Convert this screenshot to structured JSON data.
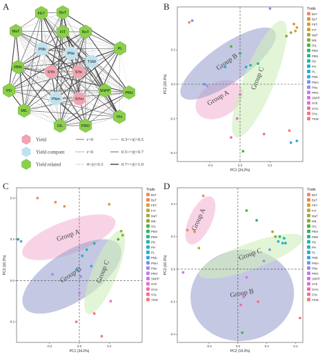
{
  "panel_labels": [
    "A",
    "B",
    "C",
    "D"
  ],
  "network": {
    "nodes": [
      {
        "id": "BoT",
        "cls": "related"
      },
      {
        "id": "FET",
        "cls": "related"
      },
      {
        "id": "MaT",
        "cls": "related"
      },
      {
        "id": "FIT",
        "cls": "related"
      },
      {
        "id": "BoT2",
        "label": "BoT",
        "cls": "related"
      },
      {
        "id": "PL",
        "cls": "related"
      },
      {
        "id": "PNb",
        "cls": "component"
      },
      {
        "id": "PNe",
        "cls": "component"
      },
      {
        "id": "TSW",
        "cls": "component"
      },
      {
        "id": "PBN",
        "cls": "related"
      },
      {
        "id": "SYb",
        "cls": "yield"
      },
      {
        "id": "SYe",
        "cls": "yield"
      },
      {
        "id": "PD",
        "cls": "related"
      },
      {
        "id": "SNPP",
        "cls": "related"
      },
      {
        "id": "PBH",
        "cls": "related"
      },
      {
        "id": "PNm",
        "cls": "component"
      },
      {
        "id": "SYm",
        "cls": "yield"
      },
      {
        "id": "MIL",
        "cls": "related"
      },
      {
        "id": "PH",
        "cls": "related"
      },
      {
        "id": "OIL",
        "cls": "related"
      },
      {
        "id": "PRO",
        "cls": "related"
      }
    ],
    "legend_classes": [
      {
        "key": "yield",
        "label": "Yield",
        "color": "#f2a3b0"
      },
      {
        "key": "component",
        "label": "Yield compont",
        "color": "#bfe2ef"
      },
      {
        "key": "related",
        "label": "Yield related",
        "color": "#8ccf4d"
      }
    ],
    "legend_r": [
      {
        "label": "r>0",
        "style": "solid"
      },
      {
        "label": "r<0",
        "style": "dashed"
      },
      {
        "label": "0<|r|<0.3",
        "style": "dotted"
      },
      {
        "label": "0.3<=|r|<0.5",
        "style": "thin"
      },
      {
        "label": "0.5<=|r|<0.7",
        "style": "mid"
      },
      {
        "label": "0.7<=|r|<1.0",
        "style": "thick"
      }
    ]
  },
  "traits_title": "Traits",
  "traits": [
    {
      "name": "BoT",
      "color": "#f28572"
    },
    {
      "name": "BoT",
      "color": "#ec8b3e"
    },
    {
      "name": "FET",
      "color": "#d99a3a"
    },
    {
      "name": "FIT",
      "color": "#c6a336"
    },
    {
      "name": "MaT",
      "color": "#a8a834"
    },
    {
      "name": "MIL",
      "color": "#84ad33"
    },
    {
      "name": "OIL",
      "color": "#4fb33b"
    },
    {
      "name": "PBH",
      "color": "#2db55d"
    },
    {
      "name": "PBN",
      "color": "#27b685"
    },
    {
      "name": "PD",
      "color": "#22b7a3"
    },
    {
      "name": "PH",
      "color": "#1fb5c0"
    },
    {
      "name": "PL",
      "color": "#22afd8"
    },
    {
      "name": "PNb",
      "color": "#37a4ea"
    },
    {
      "name": "PNm",
      "color": "#6e96f2"
    },
    {
      "name": "PNe",
      "color": "#9c88f4"
    },
    {
      "name": "PRO",
      "color": "#bd7bf0"
    },
    {
      "name": "SNPP",
      "color": "#d970e2"
    },
    {
      "name": "SYb",
      "color": "#ea6bcb"
    },
    {
      "name": "SYm",
      "color": "#f36aa9"
    },
    {
      "name": "SYe",
      "color": "#f5708a"
    },
    {
      "name": "TSW",
      "color": "#f47a78"
    }
  ],
  "chart_data": [
    {
      "type": "scatter",
      "panel": "B",
      "xlabel": "PC1 (24.2%)",
      "ylabel": "PC2 (19.3%)",
      "xlim": [
        -0.42,
        0.42
      ],
      "ylim": [
        -0.45,
        0.45
      ],
      "xticks": [
        -0.2,
        0.0,
        0.2
      ],
      "yticks": [
        -0.4,
        -0.2,
        0.0,
        0.2
      ],
      "groups": [
        {
          "label": "Group A",
          "cx": -0.14,
          "cy": -0.09,
          "rx": 0.17,
          "ry": 0.1,
          "rot": -30,
          "color": "#f4b6d6"
        },
        {
          "label": "Group B",
          "cx": -0.08,
          "cy": 0.12,
          "rx": 0.38,
          "ry": 0.11,
          "rot": -35,
          "color": "#9fa4cf"
        },
        {
          "label": "Group C",
          "cx": 0.13,
          "cy": 0.03,
          "rx": 0.42,
          "ry": 0.09,
          "rot": -68,
          "color": "#cfeebb"
        }
      ],
      "points": [
        {
          "x": -0.34,
          "y": 0.36,
          "t": 0
        },
        {
          "x": -0.32,
          "y": 0.37,
          "t": 13
        },
        {
          "x": 0.2,
          "y": 0.44,
          "t": 14
        },
        {
          "x": 0.36,
          "y": 0.35,
          "t": 1
        },
        {
          "x": 0.38,
          "y": 0.33,
          "t": 2
        },
        {
          "x": 0.37,
          "y": 0.31,
          "t": 3
        },
        {
          "x": 0.34,
          "y": 0.3,
          "t": 4
        },
        {
          "x": 0.31,
          "y": 0.28,
          "t": 5
        },
        {
          "x": -0.06,
          "y": 0.22,
          "t": 6
        },
        {
          "x": 0.0,
          "y": 0.18,
          "t": 7
        },
        {
          "x": 0.12,
          "y": 0.12,
          "t": 8
        },
        {
          "x": 0.07,
          "y": 0.11,
          "t": 9
        },
        {
          "x": 0.04,
          "y": 0.1,
          "t": 10
        },
        {
          "x": -0.1,
          "y": 0.1,
          "t": 11
        },
        {
          "x": -0.24,
          "y": 0.0,
          "t": 12
        },
        {
          "x": -0.22,
          "y": -0.01,
          "t": 15
        },
        {
          "x": 0.0,
          "y": -0.06,
          "t": 16
        },
        {
          "x": -0.02,
          "y": -0.2,
          "t": 17
        },
        {
          "x": -0.06,
          "y": -0.31,
          "t": 18
        },
        {
          "x": 0.16,
          "y": -0.29,
          "t": 19
        },
        {
          "x": 0.33,
          "y": -0.27,
          "t": 20
        },
        {
          "x": 0.38,
          "y": -0.33,
          "t": 11
        },
        {
          "x": 0.34,
          "y": -0.34,
          "t": 12
        },
        {
          "x": 0.02,
          "y": -0.39,
          "t": 6
        }
      ]
    },
    {
      "type": "scatter",
      "panel": "C",
      "xlabel": "PC1 (24.2%)",
      "ylabel": "PC3 (16.3%)",
      "xlim": [
        -0.42,
        0.42
      ],
      "ylim": [
        -0.3,
        0.45
      ],
      "xticks": [
        -0.2,
        0.0,
        0.2
      ],
      "yticks": [
        -0.2,
        0.0,
        0.2,
        0.4
      ],
      "groups": [
        {
          "label": "Group A",
          "cx": -0.07,
          "cy": 0.21,
          "rx": 0.33,
          "ry": 0.08,
          "rot": -20,
          "color": "#f4b6d6"
        },
        {
          "label": "Group B",
          "cx": -0.05,
          "cy": 0.02,
          "rx": 0.38,
          "ry": 0.12,
          "rot": -33,
          "color": "#9fa4cf"
        },
        {
          "label": "Group C",
          "cx": 0.17,
          "cy": 0.04,
          "rx": 0.3,
          "ry": 0.06,
          "rot": -68,
          "color": "#cfeebb"
        }
      ],
      "points": [
        {
          "x": -0.28,
          "y": 0.4,
          "t": 0
        },
        {
          "x": -0.16,
          "y": 0.38,
          "t": 1
        },
        {
          "x": -0.1,
          "y": 0.36,
          "t": 2
        },
        {
          "x": 0.2,
          "y": 0.37,
          "t": 3
        },
        {
          "x": 0.28,
          "y": 0.24,
          "t": 4
        },
        {
          "x": 0.29,
          "y": 0.22,
          "t": 5
        },
        {
          "x": 0.26,
          "y": 0.2,
          "t": 6
        },
        {
          "x": -0.41,
          "y": 0.2,
          "t": 7
        },
        {
          "x": -0.39,
          "y": 0.19,
          "t": 13
        },
        {
          "x": 0.1,
          "y": 0.18,
          "t": 8
        },
        {
          "x": 0.05,
          "y": 0.15,
          "t": 9
        },
        {
          "x": 0.02,
          "y": 0.12,
          "t": 10
        },
        {
          "x": 0.08,
          "y": 0.07,
          "t": 11
        },
        {
          "x": -0.02,
          "y": 0.05,
          "t": 12
        },
        {
          "x": 0.01,
          "y": 0.02,
          "t": 14
        },
        {
          "x": -0.18,
          "y": 0.03,
          "t": 15
        },
        {
          "x": 0.0,
          "y": -0.06,
          "t": 16
        },
        {
          "x": 0.21,
          "y": -0.1,
          "t": 17
        },
        {
          "x": -0.02,
          "y": -0.2,
          "t": 18
        },
        {
          "x": 0.1,
          "y": -0.16,
          "t": 19
        },
        {
          "x": 0.15,
          "y": -0.27,
          "t": 20
        }
      ]
    },
    {
      "type": "scatter",
      "panel": "D",
      "xlabel": "PC2 (19.3%)",
      "ylabel": "PC3 (16.3%)",
      "xlim": [
        -0.42,
        0.45
      ],
      "ylim": [
        -0.45,
        0.5
      ],
      "xticks": [
        -0.2,
        0.0,
        0.2,
        0.4
      ],
      "yticks": [
        -0.4,
        -0.2,
        0.0,
        0.2,
        0.4
      ],
      "groups": [
        {
          "label": "Group A",
          "cx": -0.26,
          "cy": 0.3,
          "rx": 0.18,
          "ry": 0.07,
          "rot": -65,
          "color": "#f4b6d6"
        },
        {
          "label": "Group B",
          "cx": 0.03,
          "cy": -0.16,
          "rx": 0.36,
          "ry": 0.28,
          "rot": -10,
          "color": "#9fa4cf"
        },
        {
          "label": "Group C",
          "cx": 0.09,
          "cy": 0.08,
          "rx": 0.38,
          "ry": 0.08,
          "rot": -20,
          "color": "#cfeebb"
        }
      ],
      "points": [
        {
          "x": -0.24,
          "y": 0.45,
          "t": 0
        },
        {
          "x": -0.35,
          "y": 0.24,
          "t": 1
        },
        {
          "x": -0.3,
          "y": 0.23,
          "t": 2
        },
        {
          "x": -0.27,
          "y": 0.13,
          "t": 3
        },
        {
          "x": 0.06,
          "y": 0.36,
          "t": 6
        },
        {
          "x": 0.13,
          "y": 0.3,
          "t": 7
        },
        {
          "x": 0.24,
          "y": 0.23,
          "t": 4
        },
        {
          "x": 0.26,
          "y": 0.2,
          "t": 5
        },
        {
          "x": 0.29,
          "y": 0.2,
          "t": 8
        },
        {
          "x": 0.32,
          "y": 0.19,
          "t": 9
        },
        {
          "x": 0.31,
          "y": 0.16,
          "t": 10
        },
        {
          "x": 0.33,
          "y": 0.16,
          "t": 11
        },
        {
          "x": 0.28,
          "y": 0.17,
          "t": 12
        },
        {
          "x": 0.22,
          "y": 0.12,
          "t": 13
        },
        {
          "x": 0.18,
          "y": 0.05,
          "t": 14
        },
        {
          "x": -0.38,
          "y": -0.02,
          "t": 15
        },
        {
          "x": 0.06,
          "y": -0.05,
          "t": 16
        },
        {
          "x": 0.04,
          "y": -0.17,
          "t": 17
        },
        {
          "x": 0.02,
          "y": -0.22,
          "t": 18
        },
        {
          "x": 0.14,
          "y": -0.2,
          "t": 19
        },
        {
          "x": 0.43,
          "y": -0.3,
          "t": 20
        },
        {
          "x": 0.03,
          "y": -0.39,
          "t": 6
        }
      ]
    }
  ]
}
